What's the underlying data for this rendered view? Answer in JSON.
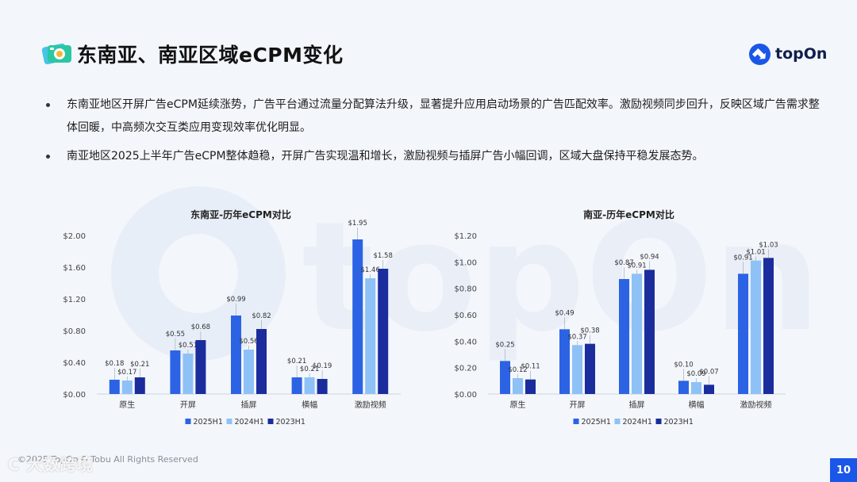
{
  "header": {
    "title": "东南亚、南亚区域eCPM变化",
    "title_icon": "photo-stack-icon",
    "logo_text": "topOn",
    "logo_icon": "topon-logo-icon"
  },
  "bullets": [
    "东南亚地区开屏广告eCPM延续涨势，广告平台通过流量分配算法升级，显著提升应用启动场景的广告匹配效率。激励视频同步回升，反映区域广告需求整体回暖，中高频次交互类应用变现效率优化明显。",
    "南亚地区2025上半年广告eCPM整体趋稳，开屏广告实现温和增长，激励视频与插屏广告小幅回调，区域大盘保持平稳发展态势。"
  ],
  "colors": {
    "series": [
      "#2b63e4",
      "#8ec1f6",
      "#1b2d9c"
    ],
    "page_badge": "#1a56e8"
  },
  "chart_data": [
    {
      "type": "bar",
      "title": "东南亚-历年eCPM对比",
      "categories": [
        "原生",
        "开屏",
        "插屏",
        "横幅",
        "激励视频"
      ],
      "series": [
        {
          "name": "2025H1",
          "values": [
            0.18,
            0.55,
            0.99,
            0.21,
            1.95
          ],
          "labels": [
            "$0.18",
            "$0.55",
            "$0.99",
            "$0.21",
            "$1.95"
          ]
        },
        {
          "name": "2024H1",
          "values": [
            0.17,
            0.51,
            0.56,
            0.21,
            1.46
          ],
          "labels": [
            "$0.17",
            "$0.51",
            "$0.56",
            "$0.21",
            "$1.46"
          ]
        },
        {
          "name": "2023H1",
          "values": [
            0.21,
            0.68,
            0.82,
            0.19,
            1.58
          ],
          "labels": [
            "$0.21",
            "$0.68",
            "$0.82",
            "$0.19",
            "$1.58"
          ]
        }
      ],
      "ylim": [
        0,
        2.0
      ],
      "yticks": [
        0,
        0.4,
        0.8,
        1.2,
        1.6,
        2.0
      ],
      "ytick_labels": [
        "$0.00",
        "$0.40",
        "$0.80",
        "$1.20",
        "$1.60",
        "$2.00"
      ],
      "legend": "bottom",
      "grid": false
    },
    {
      "type": "bar",
      "title": "南亚-历年eCPM对比",
      "categories": [
        "原生",
        "开屏",
        "插屏",
        "横幅",
        "激励视频"
      ],
      "series": [
        {
          "name": "2025H1",
          "values": [
            0.25,
            0.49,
            0.87,
            0.1,
            0.91
          ],
          "labels": [
            "$0.25",
            "$0.49",
            "$0.87",
            "$0.10",
            "$0.91"
          ]
        },
        {
          "name": "2024H1",
          "values": [
            0.12,
            0.37,
            0.91,
            0.09,
            1.01
          ],
          "labels": [
            "$0.12",
            "$0.37",
            "$0.91",
            "$0.09",
            "$1.01"
          ]
        },
        {
          "name": "2023H1",
          "values": [
            0.11,
            0.38,
            0.94,
            0.07,
            1.03
          ],
          "labels": [
            "$0.11",
            "$0.38",
            "$0.94",
            "$0.07",
            "$1.03"
          ]
        }
      ],
      "ylim": [
        0,
        1.2
      ],
      "yticks": [
        0,
        0.2,
        0.4,
        0.6,
        0.8,
        1.0,
        1.2
      ],
      "ytick_labels": [
        "$0.00",
        "$0.20",
        "$0.40",
        "$0.60",
        "$0.80",
        "$1.00",
        "$1.20"
      ],
      "legend": "bottom",
      "grid": false
    }
  ],
  "footer": {
    "copyright": "©2025 TopOn & Tobu All Rights Reserved",
    "stamp": "C 大数跨境",
    "page_number": "10"
  }
}
